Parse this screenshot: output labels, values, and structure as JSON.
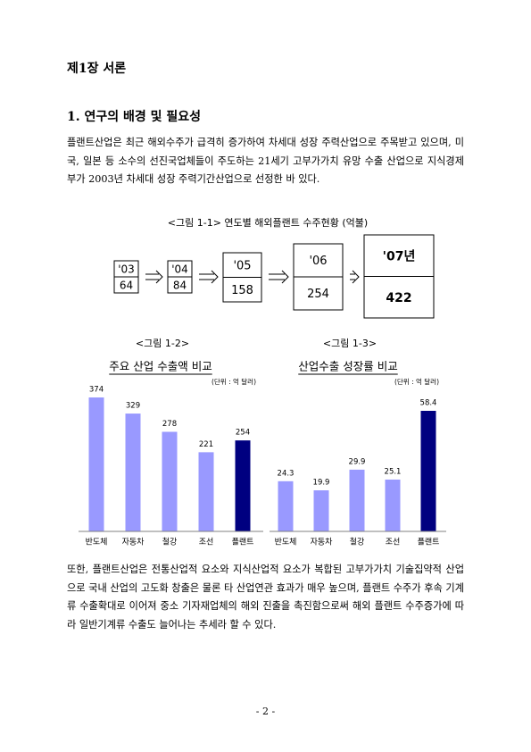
{
  "chapter_title": "제1장 서론",
  "section_title": "1. 연구의 배경 및 필요성",
  "paragraphs": [
    "플랜트산업은 최근 해외수주가 급격히 증가하여 차세대 성장 주력산업으로 주목받고 있으며, 미국, 일본 등 소수의 선진국업체들이 주도하는 21세기 고부가가치 유망 수출 산업으로 지식경제부가 2003년 차세대 성장 주력기간산업으로 선정한 바 있다.",
    "또한, 플랜트산업은 전통산업적 요소와 지식산업적 요소가 복합된 고부가가치 기술집약적 산업으로 국내 산업의 고도화 창출은 물론 타 산업연관 효과가 매우 높으며, 플랜트 수주가 후속 기계류 수출확대로 이어져 중소 기자재업체의 해외 진출을 촉진함으로써 해외 플랜트 수주증가에 따라 일반기계류 수출도 늘어나는 추세라 할 수 있다."
  ],
  "figure_1_1": {
    "caption": "<그림 1-1> 연도별 해외플랜트 수주현황 (억불)",
    "items": [
      {
        "year": "'03",
        "value": 64
      },
      {
        "year": "'04",
        "value": 84
      },
      {
        "year": "'05",
        "value": 158
      },
      {
        "year": "'06",
        "value": 254
      },
      {
        "year": "'07년",
        "value": 422
      }
    ]
  },
  "chart_data": [
    {
      "type": "bar",
      "label": "<그림 1-2>",
      "title": "주요 산업 수출액 비교",
      "unit": "(단위 : 억 달러)",
      "categories": [
        "반도체",
        "자동차",
        "철강",
        "조선",
        "플랜트"
      ],
      "values": [
        374,
        329,
        278,
        221,
        254
      ],
      "colors": [
        "#9999ff",
        "#9999ff",
        "#9999ff",
        "#9999ff",
        "#000080"
      ]
    },
    {
      "type": "bar",
      "label": "<그림 1-3>",
      "title": "산업수출 성장률 비교",
      "unit": "(단위 : 억 달러)",
      "categories": [
        "반도체",
        "자동차",
        "철강",
        "조선",
        "플랜트"
      ],
      "values": [
        24.3,
        19.9,
        29.9,
        25.1,
        58.4
      ],
      "colors": [
        "#9999ff",
        "#9999ff",
        "#9999ff",
        "#9999ff",
        "#000080"
      ]
    }
  ],
  "page_number": "- 2 -"
}
